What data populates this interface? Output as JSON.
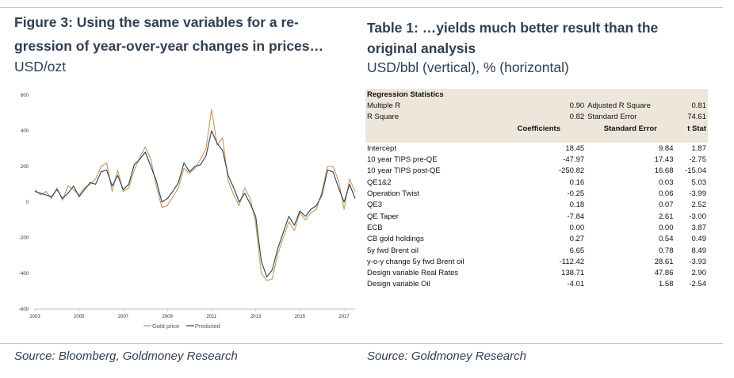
{
  "left_panel": {
    "title_line1": "Figure 3: Using the same variables for a re-",
    "title_line2": "gression of year-over-year changes in prices…",
    "subtitle": "USD/ozt",
    "source": "Source: Bloomberg, Goldmoney Research"
  },
  "right_panel": {
    "title_line1": "Table 1: …yields much better result than the",
    "title_line2": "original analysis",
    "subtitle": "USD/bbl (vertical), % (horizontal)",
    "source": "Source: Goldmoney Research"
  },
  "colors": {
    "gold_price": "#c8955f",
    "predicted": "#2b3e50",
    "table_header_bg": "#ede6da",
    "title_text": "#2f3f52"
  },
  "chart_data": {
    "type": "line",
    "xlim": [
      2003,
      2017.5
    ],
    "ylim": [
      -600,
      600
    ],
    "x_ticks": [
      2003,
      2005,
      2007,
      2009,
      2011,
      2013,
      2015,
      2017
    ],
    "x_tick_labels": [
      "2003",
      "2005",
      "2007",
      "2009",
      "2011",
      "2013",
      "2015",
      "2017"
    ],
    "y_ticks": [
      -600,
      -400,
      -200,
      0,
      200,
      400,
      600
    ],
    "y_tick_labels": [
      "-600",
      "-400",
      "-200",
      "0",
      "200",
      "400",
      "600"
    ],
    "grid": false,
    "legend_position": "bottom",
    "x": [
      2003.0,
      2003.25,
      2003.5,
      2003.75,
      2004.0,
      2004.25,
      2004.5,
      2004.75,
      2005.0,
      2005.25,
      2005.5,
      2005.75,
      2006.0,
      2006.25,
      2006.5,
      2006.75,
      2007.0,
      2007.25,
      2007.5,
      2007.75,
      2008.0,
      2008.25,
      2008.5,
      2008.75,
      2009.0,
      2009.25,
      2009.5,
      2009.75,
      2010.0,
      2010.25,
      2010.5,
      2010.75,
      2011.0,
      2011.25,
      2011.5,
      2011.75,
      2012.0,
      2012.25,
      2012.5,
      2012.75,
      2013.0,
      2013.25,
      2013.5,
      2013.75,
      2014.0,
      2014.25,
      2014.5,
      2014.75,
      2015.0,
      2015.25,
      2015.5,
      2015.75,
      2016.0,
      2016.25,
      2016.5,
      2016.75,
      2017.0,
      2017.25,
      2017.5
    ],
    "series": [
      {
        "name": "Gold price",
        "color": "#c8955f",
        "values": [
          70,
          40,
          60,
          20,
          80,
          10,
          90,
          70,
          40,
          80,
          100,
          130,
          200,
          220,
          60,
          180,
          60,
          80,
          180,
          250,
          310,
          240,
          90,
          -30,
          -20,
          30,
          80,
          190,
          160,
          190,
          240,
          300,
          520,
          320,
          360,
          120,
          40,
          -20,
          80,
          20,
          -120,
          -400,
          -440,
          -430,
          -290,
          -200,
          -110,
          -160,
          -60,
          -100,
          -60,
          -40,
          60,
          200,
          200,
          120,
          -40,
          130,
          60
        ]
      },
      {
        "name": "Predicted",
        "color": "#2b3e50",
        "values": [
          60,
          50,
          40,
          30,
          70,
          20,
          50,
          90,
          30,
          70,
          110,
          100,
          170,
          180,
          90,
          150,
          70,
          100,
          210,
          240,
          280,
          200,
          120,
          0,
          20,
          60,
          110,
          220,
          170,
          200,
          210,
          260,
          400,
          330,
          290,
          150,
          80,
          0,
          50,
          -10,
          -80,
          -330,
          -420,
          -380,
          -260,
          -170,
          -80,
          -130,
          -50,
          -80,
          -40,
          -20,
          40,
          180,
          170,
          80,
          0,
          100,
          20
        ]
      }
    ]
  },
  "table": {
    "section_header": "Regression Statistics",
    "stats": [
      {
        "label": "Multiple R",
        "value": "0.90",
        "label2": "Adjusted R Square",
        "value2": "0.81"
      },
      {
        "label": "R Square",
        "value": "0.82",
        "label2": "Standard Error",
        "value2": "74.61"
      }
    ],
    "columns": [
      "Coefficients",
      "Standard Error",
      "t Stat"
    ],
    "rows": [
      {
        "name": "Intercept",
        "coef": "18.45",
        "se": "9.84",
        "t": "1.87"
      },
      {
        "name": "10 year TIPS pre-QE",
        "coef": "-47.97",
        "se": "17.43",
        "t": "-2.75"
      },
      {
        "name": "10 year TIPS post-QE",
        "coef": "-250.82",
        "se": "16.68",
        "t": "-15.04"
      },
      {
        "name": "QE1&2",
        "coef": "0.16",
        "se": "0.03",
        "t": "5.03"
      },
      {
        "name": "Operation Twist",
        "coef": "-0.25",
        "se": "0.06",
        "t": "-3.99"
      },
      {
        "name": "QE3",
        "coef": "0.18",
        "se": "0.07",
        "t": "2.52"
      },
      {
        "name": "QE Taper",
        "coef": "-7.84",
        "se": "2.61",
        "t": "-3.00"
      },
      {
        "name": "ECB",
        "coef": "0.00",
        "se": "0.00",
        "t": "3.87"
      },
      {
        "name": "CB gold holdings",
        "coef": "0.27",
        "se": "0.54",
        "t": "0.49"
      },
      {
        "name": "5y fwd Brent oil",
        "coef": "6.65",
        "se": "0.78",
        "t": "8.49"
      },
      {
        "name": "y-o-y change 5y fwd Brent oil",
        "coef": "-112.42",
        "se": "28.61",
        "t": "-3.93"
      },
      {
        "name": "Design variable Real Rates",
        "coef": "138.71",
        "se": "47.86",
        "t": "2.90"
      },
      {
        "name": "Design variable Oil",
        "coef": "-4.01",
        "se": "1.58",
        "t": "-2.54"
      }
    ]
  }
}
